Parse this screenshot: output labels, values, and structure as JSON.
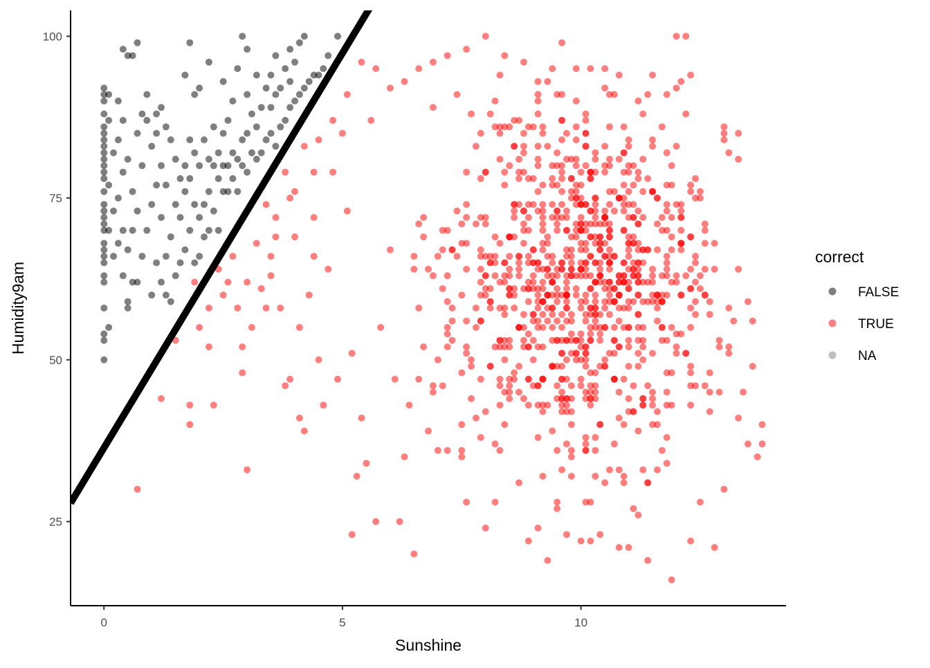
{
  "chart_data": {
    "type": "scatter",
    "title": "",
    "xlabel": "Sunshine",
    "ylabel": "Humidity9am",
    "xlim": [
      -0.7,
      14.3
    ],
    "ylim": [
      12,
      104
    ],
    "x_ticks": [
      0,
      5,
      10
    ],
    "y_ticks": [
      25,
      50,
      75,
      100
    ],
    "grid": false,
    "legend": {
      "title": "correct",
      "placement": "right",
      "entries": [
        {
          "label": "FALSE",
          "color": "#000000",
          "opacity": 0.5
        },
        {
          "label": "TRUE",
          "color": "#ff0000",
          "opacity": 0.5
        },
        {
          "label": "NA",
          "color": "#7f7f7f",
          "opacity": 0.5
        }
      ]
    },
    "reference_line": {
      "intercept": 36.4,
      "slope": 12.2,
      "color": "#000000"
    },
    "series": [
      {
        "name": "FALSE",
        "color": "#000000",
        "opacity": 0.5,
        "points": [
          [
            0,
            50
          ],
          [
            0,
            53
          ],
          [
            0,
            54
          ],
          [
            0,
            58
          ],
          [
            0,
            62
          ],
          [
            0,
            63
          ],
          [
            0,
            65
          ],
          [
            0,
            66
          ],
          [
            0,
            67
          ],
          [
            0,
            68
          ],
          [
            0,
            70
          ],
          [
            0,
            71
          ],
          [
            0,
            72
          ],
          [
            0,
            73
          ],
          [
            0,
            74
          ],
          [
            0,
            76
          ],
          [
            0,
            78
          ],
          [
            0,
            79
          ],
          [
            0,
            80
          ],
          [
            0,
            81
          ],
          [
            0,
            82
          ],
          [
            0,
            83
          ],
          [
            0,
            84
          ],
          [
            0,
            85
          ],
          [
            0,
            86
          ],
          [
            0,
            88
          ],
          [
            0,
            90
          ],
          [
            0,
            91
          ],
          [
            0,
            92
          ],
          [
            0.1,
            55
          ],
          [
            0.1,
            70
          ],
          [
            0.1,
            77
          ],
          [
            0.1,
            87
          ],
          [
            0.1,
            91
          ],
          [
            0.2,
            66
          ],
          [
            0.2,
            73
          ],
          [
            0.2,
            82
          ],
          [
            0.3,
            68
          ],
          [
            0.3,
            75
          ],
          [
            0.3,
            84
          ],
          [
            0.3,
            90
          ],
          [
            0.4,
            63
          ],
          [
            0.4,
            70
          ],
          [
            0.4,
            79
          ],
          [
            0.4,
            87
          ],
          [
            0.4,
            98
          ],
          [
            0.5,
            58
          ],
          [
            0.5,
            59
          ],
          [
            0.5,
            67
          ],
          [
            0.5,
            81
          ],
          [
            0.5,
            97
          ],
          [
            0.6,
            62
          ],
          [
            0.6,
            70
          ],
          [
            0.6,
            76
          ],
          [
            0.6,
            97
          ],
          [
            0.7,
            62
          ],
          [
            0.7,
            73
          ],
          [
            0.7,
            85
          ],
          [
            0.7,
            99
          ],
          [
            0.8,
            66
          ],
          [
            0.8,
            80
          ],
          [
            0.8,
            88
          ],
          [
            0.9,
            70
          ],
          [
            0.9,
            87
          ],
          [
            0.9,
            91
          ],
          [
            1.0,
            60
          ],
          [
            1.0,
            74
          ],
          [
            1.0,
            83
          ],
          [
            1.1,
            65
          ],
          [
            1.1,
            77
          ],
          [
            1.1,
            85
          ],
          [
            1.1,
            88
          ],
          [
            1.2,
            62
          ],
          [
            1.2,
            72
          ],
          [
            1.2,
            80
          ],
          [
            1.2,
            89
          ],
          [
            1.3,
            60
          ],
          [
            1.3,
            66
          ],
          [
            1.3,
            77
          ],
          [
            1.3,
            86
          ],
          [
            1.4,
            59
          ],
          [
            1.4,
            69
          ],
          [
            1.4,
            84
          ],
          [
            1.5,
            63
          ],
          [
            1.5,
            74
          ],
          [
            1.5,
            81
          ],
          [
            1.6,
            65
          ],
          [
            1.6,
            72
          ],
          [
            1.6,
            78
          ],
          [
            1.7,
            67
          ],
          [
            1.7,
            76
          ],
          [
            1.7,
            80
          ],
          [
            1.7,
            94
          ],
          [
            1.8,
            70
          ],
          [
            1.8,
            78
          ],
          [
            1.8,
            84
          ],
          [
            1.8,
            99
          ],
          [
            1.9,
            65
          ],
          [
            1.9,
            74
          ],
          [
            1.9,
            82
          ],
          [
            1.9,
            91
          ],
          [
            2.0,
            66
          ],
          [
            2.0,
            72
          ],
          [
            2.0,
            80
          ],
          [
            2.0,
            92
          ],
          [
            2.1,
            69
          ],
          [
            2.1,
            74
          ],
          [
            2.1,
            84
          ],
          [
            2.2,
            70
          ],
          [
            2.2,
            76
          ],
          [
            2.2,
            81
          ],
          [
            2.2,
            96
          ],
          [
            2.3,
            73
          ],
          [
            2.3,
            80
          ],
          [
            2.3,
            86
          ],
          [
            2.4,
            70
          ],
          [
            2.4,
            78
          ],
          [
            2.4,
            82
          ],
          [
            2.5,
            76
          ],
          [
            2.5,
            80
          ],
          [
            2.5,
            85
          ],
          [
            2.5,
            93
          ],
          [
            2.6,
            76
          ],
          [
            2.6,
            80
          ],
          [
            2.6,
            87
          ],
          [
            2.7,
            78
          ],
          [
            2.7,
            82
          ],
          [
            2.7,
            90
          ],
          [
            2.8,
            76
          ],
          [
            2.8,
            81
          ],
          [
            2.8,
            95
          ],
          [
            2.9,
            80
          ],
          [
            2.9,
            84
          ],
          [
            2.9,
            100
          ],
          [
            3.0,
            79
          ],
          [
            3.0,
            85
          ],
          [
            3.0,
            91
          ],
          [
            3.0,
            98
          ],
          [
            3.1,
            82
          ],
          [
            3.1,
            88
          ],
          [
            3.2,
            81
          ],
          [
            3.2,
            86
          ],
          [
            3.2,
            94
          ],
          [
            3.3,
            82
          ],
          [
            3.3,
            89
          ],
          [
            3.4,
            84
          ],
          [
            3.4,
            92
          ],
          [
            3.5,
            85
          ],
          [
            3.5,
            89
          ],
          [
            3.5,
            94
          ],
          [
            3.6,
            83
          ],
          [
            3.6,
            91
          ],
          [
            3.6,
            97
          ],
          [
            3.7,
            86
          ],
          [
            3.7,
            92
          ],
          [
            3.8,
            87
          ],
          [
            3.8,
            95
          ],
          [
            3.9,
            89
          ],
          [
            3.9,
            93
          ],
          [
            3.9,
            98
          ],
          [
            4.0,
            90
          ],
          [
            4.0,
            96
          ],
          [
            4.1,
            91
          ],
          [
            4.1,
            99
          ],
          [
            4.2,
            92
          ],
          [
            4.2,
            100
          ],
          [
            4.3,
            93
          ],
          [
            4.4,
            94
          ],
          [
            4.5,
            94
          ],
          [
            4.6,
            95
          ],
          [
            4.7,
            97
          ],
          [
            4.9,
            100
          ]
        ]
      },
      {
        "name": "TRUE",
        "color": "#ff0000",
        "opacity": 0.5,
        "cluster": {
          "cx": 10.0,
          "cy": 62,
          "sx": 1.5,
          "sy": 13,
          "n": 900,
          "xmin": 6.5,
          "xmax": 13.8,
          "ymin": 26,
          "ymax": 100
        },
        "points": [
          [
            0.7,
            30
          ],
          [
            1.2,
            44
          ],
          [
            1.5,
            53
          ],
          [
            1.8,
            40
          ],
          [
            1.8,
            43
          ],
          [
            2.2,
            52
          ],
          [
            2.3,
            43
          ],
          [
            2.5,
            60
          ],
          [
            2.7,
            66
          ],
          [
            2.9,
            48
          ],
          [
            2.9,
            52
          ],
          [
            3.0,
            33
          ],
          [
            3.1,
            55
          ],
          [
            3.3,
            61
          ],
          [
            3.4,
            58
          ],
          [
            3.5,
            63
          ],
          [
            3.6,
            69
          ],
          [
            3.7,
            58
          ],
          [
            3.8,
            46
          ],
          [
            3.9,
            47
          ],
          [
            4.0,
            76
          ],
          [
            4.1,
            55
          ],
          [
            4.1,
            41
          ],
          [
            4.2,
            39
          ],
          [
            4.3,
            60
          ],
          [
            4.4,
            66
          ],
          [
            4.4,
            72
          ],
          [
            4.5,
            50
          ],
          [
            4.6,
            43
          ],
          [
            4.7,
            64
          ],
          [
            4.8,
            79
          ],
          [
            4.9,
            47
          ],
          [
            5.0,
            85
          ],
          [
            5.1,
            73
          ],
          [
            5.2,
            51
          ],
          [
            5.2,
            23
          ],
          [
            5.3,
            32
          ],
          [
            5.4,
            41
          ],
          [
            5.5,
            34
          ],
          [
            5.6,
            87
          ],
          [
            5.7,
            25
          ],
          [
            5.8,
            55
          ],
          [
            6.0,
            67
          ],
          [
            6.1,
            47
          ],
          [
            6.2,
            25
          ],
          [
            6.3,
            35
          ],
          [
            6.4,
            43
          ],
          [
            6.5,
            20
          ],
          [
            6.6,
            58
          ],
          [
            6.8,
            39
          ],
          [
            7.0,
            36
          ],
          [
            7.1,
            46
          ],
          [
            7.3,
            53
          ],
          [
            7.5,
            36
          ],
          [
            7.6,
            28
          ],
          [
            7.8,
            41
          ],
          [
            8.0,
            24
          ],
          [
            8.1,
            49
          ],
          [
            8.2,
            28
          ],
          [
            8.3,
            36
          ],
          [
            8.5,
            44
          ],
          [
            8.7,
            31
          ],
          [
            8.9,
            22
          ],
          [
            9.1,
            24
          ],
          [
            9.3,
            19
          ],
          [
            9.5,
            27
          ],
          [
            9.7,
            23
          ],
          [
            9.8,
            40
          ],
          [
            10.0,
            22
          ],
          [
            10.2,
            22
          ],
          [
            10.4,
            23
          ],
          [
            10.6,
            33
          ],
          [
            10.8,
            21
          ],
          [
            11.0,
            21
          ],
          [
            11.2,
            26
          ],
          [
            11.4,
            19
          ],
          [
            11.5,
            43
          ],
          [
            11.6,
            33
          ],
          [
            11.9,
            16
          ],
          [
            12.0,
            100
          ],
          [
            12.2,
            100
          ],
          [
            12.3,
            22
          ],
          [
            12.5,
            28
          ],
          [
            12.8,
            21
          ],
          [
            13.0,
            84
          ],
          [
            13.3,
            81
          ],
          [
            13.5,
            37
          ],
          [
            13.7,
            35
          ],
          [
            13.8,
            37
          ],
          [
            13.1,
            52
          ],
          [
            12.9,
            45
          ],
          [
            12.6,
            60
          ],
          [
            12.4,
            66
          ],
          [
            12.1,
            72
          ],
          [
            11.8,
            77
          ],
          [
            11.5,
            84
          ],
          [
            11.2,
            90
          ],
          [
            10.8,
            94
          ],
          [
            10.5,
            92
          ],
          [
            10.2,
            95
          ],
          [
            9.9,
            95
          ],
          [
            9.6,
            99
          ],
          [
            9.4,
            95
          ],
          [
            9.1,
            91
          ],
          [
            8.8,
            96
          ],
          [
            8.4,
            97
          ],
          [
            8.0,
            100
          ],
          [
            7.6,
            98
          ],
          [
            7.2,
            97
          ],
          [
            6.9,
            96
          ],
          [
            6.6,
            95
          ],
          [
            6.3,
            93
          ],
          [
            6.0,
            92
          ],
          [
            5.7,
            95
          ],
          [
            5.4,
            96
          ],
          [
            5.1,
            91
          ],
          [
            4.8,
            87
          ],
          [
            4.5,
            84
          ],
          [
            4.4,
            79
          ],
          [
            4.2,
            83
          ],
          [
            4.0,
            69
          ],
          [
            3.9,
            75
          ],
          [
            3.8,
            79
          ],
          [
            3.6,
            72
          ],
          [
            3.5,
            66
          ],
          [
            3.4,
            74
          ],
          [
            3.2,
            68
          ],
          [
            3.0,
            62
          ],
          [
            2.8,
            58
          ],
          [
            2.6,
            62
          ],
          [
            2.4,
            64
          ],
          [
            2.2,
            58
          ],
          [
            2.0,
            55
          ],
          [
            1.9,
            62
          ]
        ]
      }
    ]
  }
}
